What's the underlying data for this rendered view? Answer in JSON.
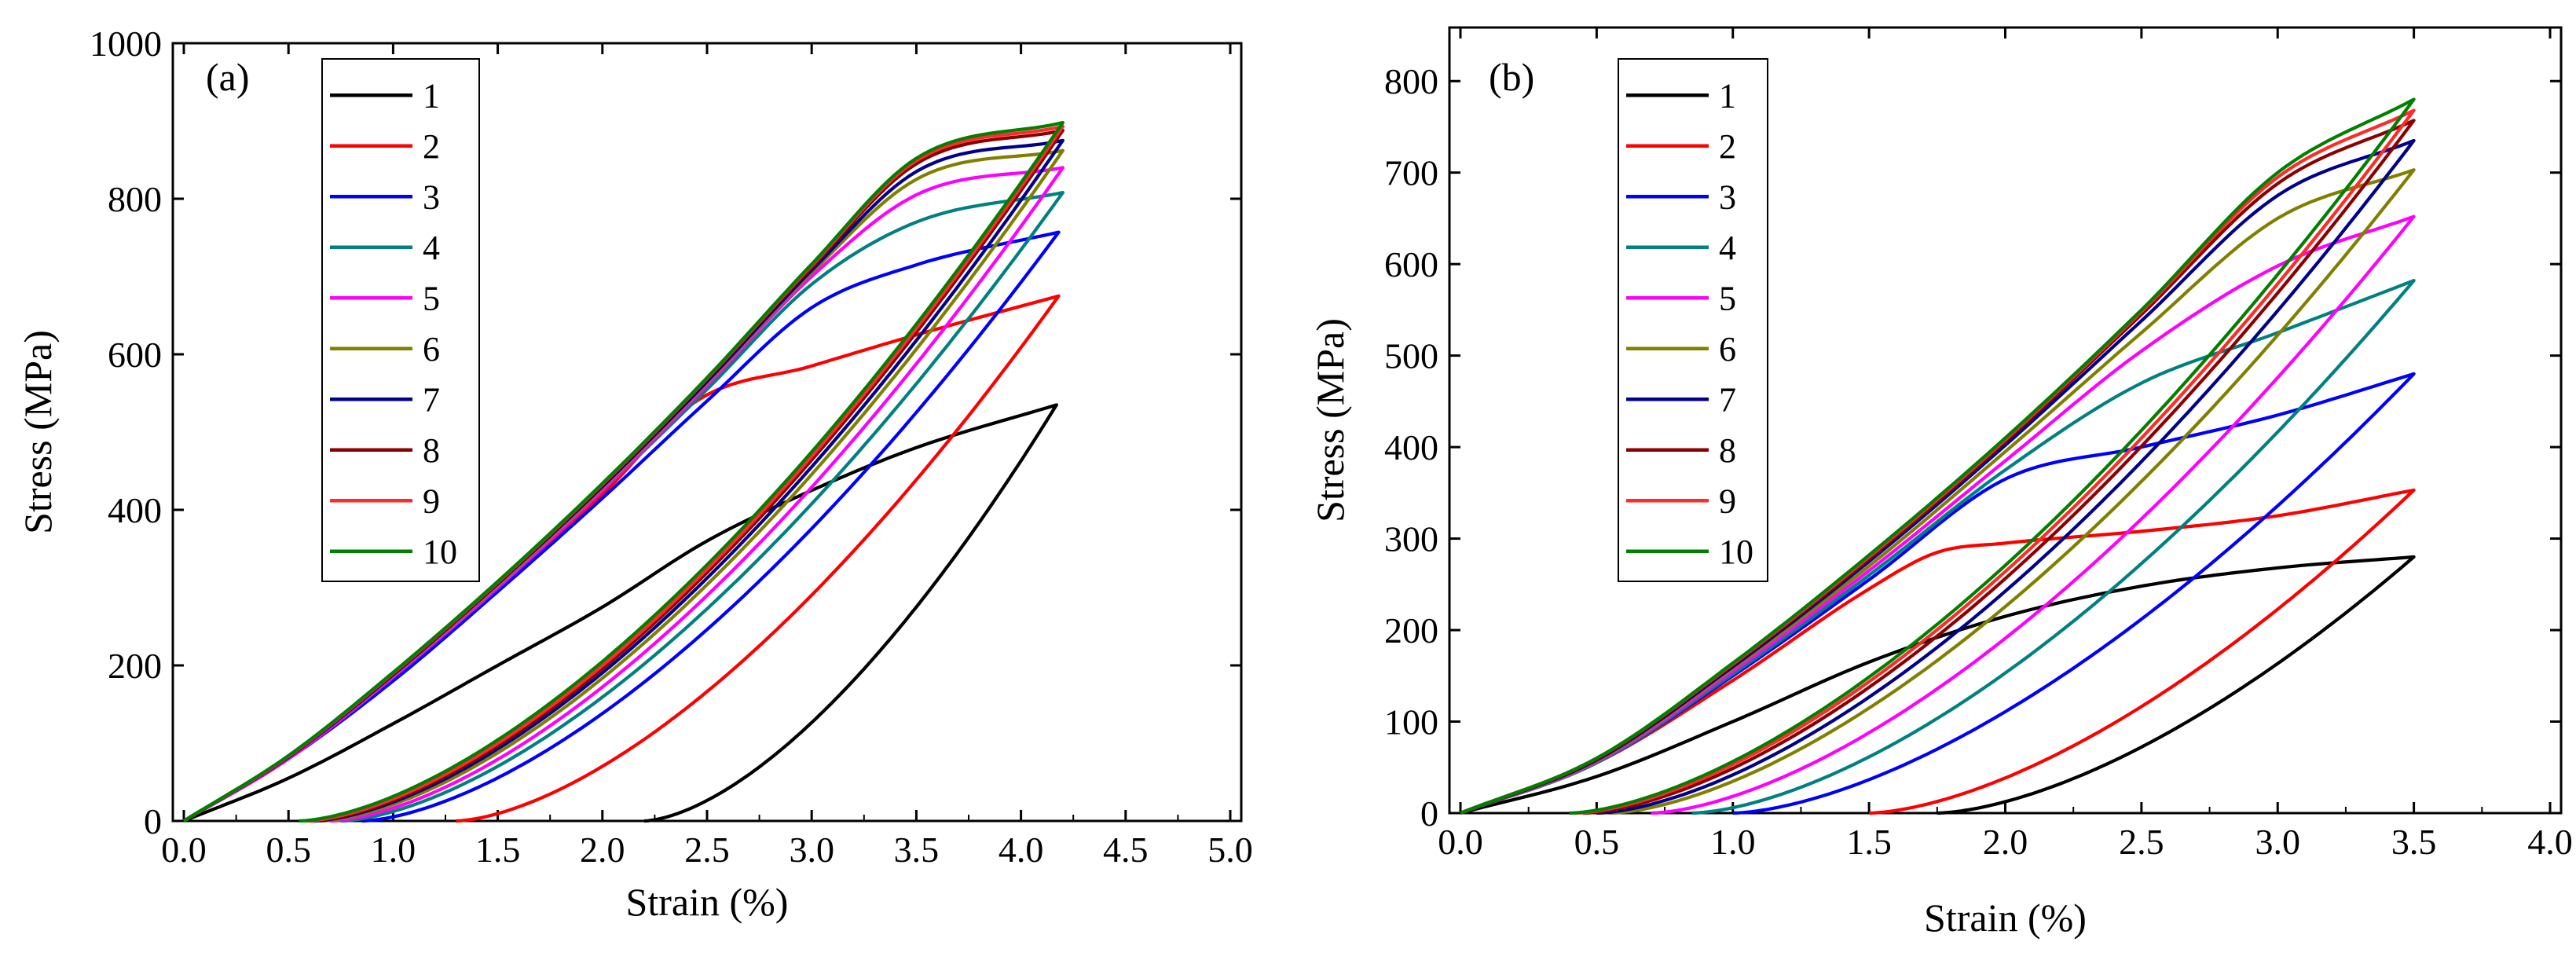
{
  "chart_data": [
    {
      "type": "line",
      "panel_label": "(a)",
      "xlabel": "Strain (%)",
      "ylabel": "Stress (MPa)",
      "xlim": [
        0,
        5.0
      ],
      "ylim": [
        0,
        1000
      ],
      "xticks": [
        "0.0",
        "0.5",
        "1.0",
        "1.5",
        "2.0",
        "2.5",
        "3.0",
        "3.5",
        "4.0",
        "4.5",
        "5.0"
      ],
      "yticks": [
        "0",
        "200",
        "400",
        "600",
        "800",
        "1000"
      ],
      "legend_position": "top-left",
      "series": [
        {
          "name": "1",
          "color": "#000000",
          "peak_strain": 4.17,
          "peak_stress": 535,
          "load_points": [
            [
              0,
              0
            ],
            [
              0.5,
              55
            ],
            [
              1.0,
              125
            ],
            [
              1.5,
              200
            ],
            [
              2.0,
              275
            ],
            [
              2.5,
              360
            ],
            [
              3.0,
              425
            ],
            [
              3.5,
              480
            ],
            [
              4.17,
              535
            ]
          ],
          "residual_strain": 2.2
        },
        {
          "name": "2",
          "color": "#ff0000",
          "peak_strain": 4.18,
          "peak_stress": 675,
          "load_points": [
            [
              0,
              0
            ],
            [
              0.5,
              80
            ],
            [
              1.0,
              185
            ],
            [
              1.5,
              300
            ],
            [
              2.0,
              420
            ],
            [
              2.45,
              540
            ],
            [
              3.0,
              585
            ],
            [
              3.5,
              625
            ],
            [
              4.18,
              675
            ]
          ],
          "residual_strain": 1.3
        },
        {
          "name": "3",
          "color": "#0000ff",
          "peak_strain": 4.18,
          "peak_stress": 757,
          "load_points": [
            [
              0,
              0
            ],
            [
              0.5,
              80
            ],
            [
              1.0,
              180
            ],
            [
              1.5,
              295
            ],
            [
              2.0,
              415
            ],
            [
              2.5,
              540
            ],
            [
              3.0,
              660
            ],
            [
              3.5,
              715
            ],
            [
              4.18,
              757
            ]
          ],
          "residual_strain": 0.85
        },
        {
          "name": "4",
          "color": "#008080",
          "peak_strain": 4.2,
          "peak_stress": 808,
          "load_points": [
            [
              0,
              0
            ],
            [
              0.5,
              80
            ],
            [
              1.0,
              185
            ],
            [
              1.5,
              300
            ],
            [
              2.0,
              425
            ],
            [
              2.5,
              555
            ],
            [
              3.0,
              690
            ],
            [
              3.5,
              770
            ],
            [
              4.2,
              808
            ]
          ],
          "residual_strain": 0.75
        },
        {
          "name": "5",
          "color": "#ff00ff",
          "peak_strain": 4.2,
          "peak_stress": 840,
          "load_points": [
            [
              0,
              0
            ],
            [
              0.5,
              80
            ],
            [
              1.0,
              185
            ],
            [
              1.5,
              300
            ],
            [
              2.0,
              425
            ],
            [
              2.5,
              560
            ],
            [
              3.0,
              700
            ],
            [
              3.5,
              805
            ],
            [
              4.2,
              840
            ]
          ],
          "residual_strain": 0.7
        },
        {
          "name": "6",
          "color": "#808000",
          "peak_strain": 4.2,
          "peak_stress": 862,
          "load_points": [
            [
              0,
              0
            ],
            [
              0.5,
              82
            ],
            [
              1.0,
              187
            ],
            [
              1.5,
              303
            ],
            [
              2.0,
              428
            ],
            [
              2.5,
              563
            ],
            [
              3.0,
              705
            ],
            [
              3.5,
              825
            ],
            [
              4.2,
              862
            ]
          ],
          "residual_strain": 0.65
        },
        {
          "name": "7",
          "color": "#00008b",
          "peak_strain": 4.2,
          "peak_stress": 875,
          "load_points": [
            [
              0,
              0
            ],
            [
              0.5,
              82
            ],
            [
              1.0,
              188
            ],
            [
              1.5,
              305
            ],
            [
              2.0,
              430
            ],
            [
              2.5,
              565
            ],
            [
              3.0,
              708
            ],
            [
              3.5,
              835
            ],
            [
              4.2,
              875
            ]
          ],
          "residual_strain": 0.62
        },
        {
          "name": "8",
          "color": "#8b0000",
          "peak_strain": 4.2,
          "peak_stress": 888,
          "load_points": [
            [
              0,
              0
            ],
            [
              0.5,
              83
            ],
            [
              1.0,
              189
            ],
            [
              1.5,
              306
            ],
            [
              2.0,
              432
            ],
            [
              2.5,
              568
            ],
            [
              3.0,
              712
            ],
            [
              3.5,
              845
            ],
            [
              4.2,
              888
            ]
          ],
          "residual_strain": 0.6
        },
        {
          "name": "9",
          "color": "#ff2a2a",
          "peak_strain": 4.2,
          "peak_stress": 893,
          "load_points": [
            [
              0,
              0
            ],
            [
              0.5,
              83
            ],
            [
              1.0,
              190
            ],
            [
              1.5,
              307
            ],
            [
              2.0,
              433
            ],
            [
              2.5,
              569
            ],
            [
              3.0,
              714
            ],
            [
              3.5,
              849
            ],
            [
              4.2,
              893
            ]
          ],
          "residual_strain": 0.58
        },
        {
          "name": "10",
          "color": "#008000",
          "peak_strain": 4.2,
          "peak_stress": 898,
          "load_points": [
            [
              0,
              0
            ],
            [
              0.5,
              84
            ],
            [
              1.0,
              191
            ],
            [
              1.5,
              308
            ],
            [
              2.0,
              434
            ],
            [
              2.5,
              570
            ],
            [
              3.0,
              716
            ],
            [
              3.5,
              852
            ],
            [
              4.2,
              898
            ]
          ],
          "residual_strain": 0.55
        }
      ]
    },
    {
      "type": "line",
      "panel_label": "(b)",
      "xlabel": "Strain (%)",
      "ylabel": "Stress (MPa)",
      "xlim": [
        0,
        4.0
      ],
      "ylim": [
        0,
        850
      ],
      "xticks": [
        "0.0",
        "0.5",
        "1.0",
        "1.5",
        "2.0",
        "2.5",
        "3.0",
        "3.5",
        "4.0"
      ],
      "yticks": [
        "0",
        "100",
        "200",
        "300",
        "400",
        "500",
        "600",
        "700",
        "800"
      ],
      "legend_position": "top-left",
      "series": [
        {
          "name": "1",
          "color": "#000000",
          "peak_strain": 3.5,
          "peak_stress": 280,
          "load_points": [
            [
              0,
              0
            ],
            [
              0.5,
              40
            ],
            [
              1.0,
              100
            ],
            [
              1.5,
              165
            ],
            [
              2.0,
              215
            ],
            [
              2.5,
              248
            ],
            [
              3.0,
              268
            ],
            [
              3.5,
              280
            ]
          ],
          "residual_strain": 1.75
        },
        {
          "name": "2",
          "color": "#ff0000",
          "peak_strain": 3.5,
          "peak_stress": 353,
          "load_points": [
            [
              0,
              0
            ],
            [
              0.5,
              55
            ],
            [
              1.0,
              145
            ],
            [
              1.5,
              245
            ],
            [
              1.75,
              285
            ],
            [
              2.0,
              295
            ],
            [
              2.5,
              308
            ],
            [
              3.0,
              325
            ],
            [
              3.5,
              353
            ]
          ],
          "residual_strain": 1.5
        },
        {
          "name": "3",
          "color": "#0000ff",
          "peak_strain": 3.5,
          "peak_stress": 480,
          "load_points": [
            [
              0,
              0
            ],
            [
              0.5,
              55
            ],
            [
              1.0,
              150
            ],
            [
              1.5,
              255
            ],
            [
              2.0,
              365
            ],
            [
              2.5,
              400
            ],
            [
              3.0,
              435
            ],
            [
              3.5,
              480
            ]
          ],
          "residual_strain": 1.0
        },
        {
          "name": "4",
          "color": "#008080",
          "peak_strain": 3.5,
          "peak_stress": 582,
          "load_points": [
            [
              0,
              0
            ],
            [
              0.5,
              55
            ],
            [
              1.0,
              152
            ],
            [
              1.5,
              260
            ],
            [
              2.0,
              375
            ],
            [
              2.5,
              470
            ],
            [
              3.0,
              525
            ],
            [
              3.5,
              582
            ]
          ],
          "residual_strain": 0.85
        },
        {
          "name": "5",
          "color": "#ff00ff",
          "peak_strain": 3.5,
          "peak_stress": 652,
          "load_points": [
            [
              0,
              0
            ],
            [
              0.5,
              56
            ],
            [
              1.0,
              155
            ],
            [
              1.5,
              265
            ],
            [
              2.0,
              385
            ],
            [
              2.5,
              505
            ],
            [
              3.0,
              598
            ],
            [
              3.5,
              652
            ]
          ],
          "residual_strain": 0.7
        },
        {
          "name": "6",
          "color": "#808000",
          "peak_strain": 3.5,
          "peak_stress": 703,
          "load_points": [
            [
              0,
              0
            ],
            [
              0.5,
              57
            ],
            [
              1.0,
              158
            ],
            [
              1.5,
              270
            ],
            [
              2.0,
              395
            ],
            [
              2.5,
              525
            ],
            [
              3.0,
              650
            ],
            [
              3.5,
              703
            ]
          ],
          "residual_strain": 0.55
        },
        {
          "name": "7",
          "color": "#00008b",
          "peak_strain": 3.5,
          "peak_stress": 735,
          "load_points": [
            [
              0,
              0
            ],
            [
              0.5,
              58
            ],
            [
              1.0,
              160
            ],
            [
              1.5,
              275
            ],
            [
              2.0,
              402
            ],
            [
              2.5,
              538
            ],
            [
              3.0,
              675
            ],
            [
              3.5,
              735
            ]
          ],
          "residual_strain": 0.5
        },
        {
          "name": "8",
          "color": "#8b0000",
          "peak_strain": 3.5,
          "peak_stress": 757,
          "load_points": [
            [
              0,
              0
            ],
            [
              0.5,
              59
            ],
            [
              1.0,
              162
            ],
            [
              1.5,
              278
            ],
            [
              2.0,
              406
            ],
            [
              2.5,
              545
            ],
            [
              3.0,
              688
            ],
            [
              3.5,
              757
            ]
          ],
          "residual_strain": 0.45
        },
        {
          "name": "9",
          "color": "#ff2a2a",
          "peak_strain": 3.5,
          "peak_stress": 768,
          "load_points": [
            [
              0,
              0
            ],
            [
              0.5,
              60
            ],
            [
              1.0,
              163
            ],
            [
              1.5,
              280
            ],
            [
              2.0,
              408
            ],
            [
              2.5,
              548
            ],
            [
              3.0,
              695
            ],
            [
              3.5,
              768
            ]
          ],
          "residual_strain": 0.42
        },
        {
          "name": "10",
          "color": "#008000",
          "peak_strain": 3.5,
          "peak_stress": 780,
          "load_points": [
            [
              0,
              0
            ],
            [
              0.5,
              60
            ],
            [
              1.0,
              164
            ],
            [
              1.5,
              282
            ],
            [
              2.0,
              410
            ],
            [
              2.5,
              550
            ],
            [
              3.0,
              700
            ],
            [
              3.5,
              780
            ]
          ],
          "residual_strain": 0.4
        }
      ]
    }
  ]
}
